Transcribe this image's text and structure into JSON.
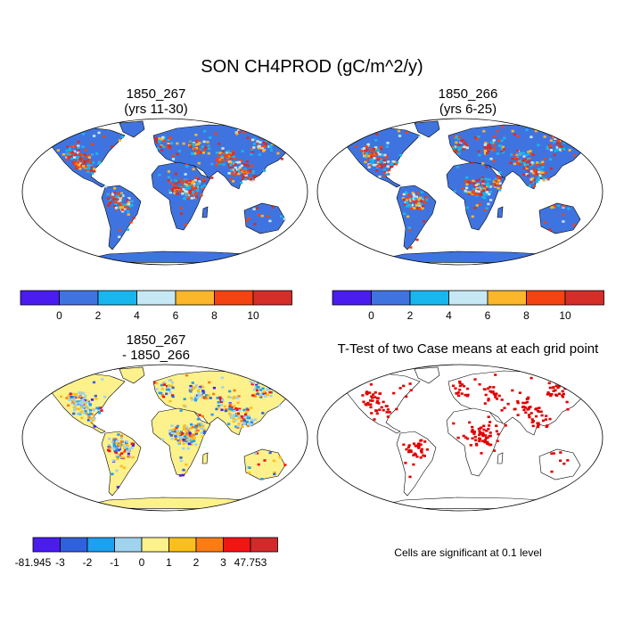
{
  "title": "SON CH4PROD (gC/m^2/y)",
  "panels": [
    {
      "title_line1": "1850_267",
      "title_line2": "(yrs 11-30)"
    },
    {
      "title_line1": "1850_266",
      "title_line2": "(yrs 6-25)"
    },
    {
      "title_line1": "1850_267",
      "title_line2": "- 1850_266"
    },
    {
      "title_line1": "T-Test of two Case means at each grid point"
    }
  ],
  "colorbars": {
    "absolute": {
      "colors": [
        "#4a1cf0",
        "#3f74e0",
        "#18b6ef",
        "#c6e8f4",
        "#fbb62a",
        "#f44310",
        "#d52d27"
      ],
      "labels": [
        "0",
        "2",
        "4",
        "6",
        "8",
        "10"
      ]
    },
    "difference": {
      "colors": [
        "#4a1cf0",
        "#3061dd",
        "#1ca0f0",
        "#9fd3ee",
        "#fdf18c",
        "#fbbf1c",
        "#fb7c13",
        "#f41414",
        "#d22a2a"
      ],
      "labels": [
        "-81.945",
        "-3",
        "-2",
        "-1",
        "0",
        "1",
        "2",
        "3",
        "47.753"
      ]
    }
  },
  "map_colors": {
    "ocean": "#ffffff",
    "abs_land": "#3f74e0",
    "diff_land": "#fdf18c",
    "sig_cell": "#e00000"
  },
  "significance_note": "Cells are significant at 0.1 level"
}
